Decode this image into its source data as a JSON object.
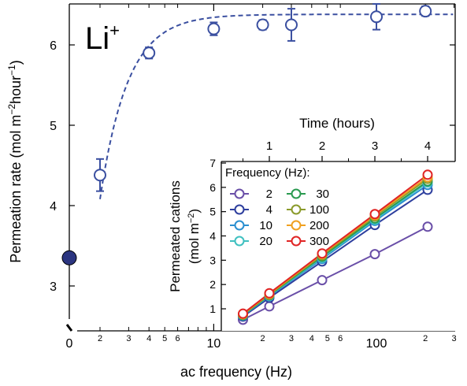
{
  "chart_data": [
    {
      "type": "scatter",
      "title": "Li+",
      "title_base": "Li",
      "title_sup": "+",
      "xlabel": "ac frequency (Hz)",
      "ylabel": {
        "main": "Permeation rate (mol m",
        "sup1": "−2",
        "mid": "hour",
        "sup2": "−1",
        "end": ")"
      },
      "x_scale": "log",
      "xlim": [
        1.5,
        300
      ],
      "ylim": [
        2.5,
        6.5
      ],
      "x_axis_break": true,
      "x_tick_major_labels": [
        "10",
        "100"
      ],
      "x_tick_minor_labels": [
        "2",
        "3",
        "4",
        "5",
        "6",
        "2",
        "3",
        "4",
        "5",
        "6",
        "2",
        "3"
      ],
      "x_tick_minor_values": [
        2,
        3,
        4,
        5,
        6,
        20,
        30,
        40,
        50,
        60,
        200,
        300
      ],
      "x_tick_major_values": [
        10,
        100
      ],
      "zero_label": "0",
      "y_ticks": [
        3,
        4,
        5,
        6
      ],
      "y_tick_labels": [
        "3",
        "4",
        "5",
        "6"
      ],
      "series": [
        {
          "marker": "open-circle",
          "color": "#3a4fa0",
          "points": [
            {
              "x": 2,
              "y": 4.38,
              "err": 0.2
            },
            {
              "x": 4,
              "y": 5.9,
              "err": 0.07
            },
            {
              "x": 10,
              "y": 6.2,
              "err": 0.08
            },
            {
              "x": 20,
              "y": 6.25,
              "err": 0.06
            },
            {
              "x": 30,
              "y": 6.25,
              "err": 0.2
            },
            {
              "x": 100,
              "y": 6.35,
              "err": 0.16
            },
            {
              "x": 200,
              "y": 6.42,
              "err": 0.06
            }
          ]
        },
        {
          "marker": "filled-circle",
          "color": "#2b3580",
          "points": [
            {
              "x": 0,
              "y": 3.35
            }
          ]
        }
      ],
      "fit_line": {
        "style": "dashed",
        "color": "#3a4fa0",
        "model": "y = 6.4 - 6.8*exp(-(x-1.5)/1.6)",
        "x_start": 2
      }
    },
    {
      "type": "line",
      "xlabel": "Time (hours)",
      "ylabel": {
        "line1": "Permeated cations",
        "line2_main": "(mol m",
        "line2_sup": "−2",
        "line2_end": ")"
      },
      "xlim": [
        0,
        4.5
      ],
      "ylim": [
        0.5,
        7
      ],
      "x_ticks": [
        1,
        2,
        3,
        4
      ],
      "x_tick_labels": [
        "1",
        "2",
        "3",
        "4"
      ],
      "y_ticks": [
        1,
        2,
        3,
        4,
        5,
        6,
        7
      ],
      "y_tick_labels": [
        "1",
        "2",
        "3",
        "4",
        "5",
        "6",
        "7"
      ],
      "legend_title": "Frequency (Hz):",
      "legend_placement": "top-left",
      "x": [
        0.5,
        1,
        2,
        3,
        4
      ],
      "series": [
        {
          "name": "2",
          "color": "#6a4fa8",
          "values": [
            0.55,
            1.1,
            2.18,
            3.25,
            4.38
          ]
        },
        {
          "name": "4",
          "color": "#2e3f9e",
          "values": [
            0.68,
            1.45,
            2.95,
            4.45,
            5.9
          ]
        },
        {
          "name": "10",
          "color": "#2a8fd0",
          "values": [
            0.72,
            1.52,
            3.05,
            4.62,
            6.1
          ]
        },
        {
          "name": "20",
          "color": "#3fc0c0",
          "values": [
            0.73,
            1.54,
            3.1,
            4.67,
            6.2
          ]
        },
        {
          "name": "30",
          "color": "#2a9a50",
          "values": [
            0.74,
            1.56,
            3.15,
            4.72,
            6.25
          ]
        },
        {
          "name": "100",
          "color": "#8a9a2a",
          "values": [
            0.76,
            1.58,
            3.2,
            4.8,
            6.35
          ]
        },
        {
          "name": "200",
          "color": "#f0a020",
          "values": [
            0.78,
            1.61,
            3.25,
            4.85,
            6.42
          ]
        },
        {
          "name": "300",
          "color": "#e02424",
          "values": [
            0.8,
            1.64,
            3.28,
            4.9,
            6.52
          ]
        }
      ]
    }
  ]
}
